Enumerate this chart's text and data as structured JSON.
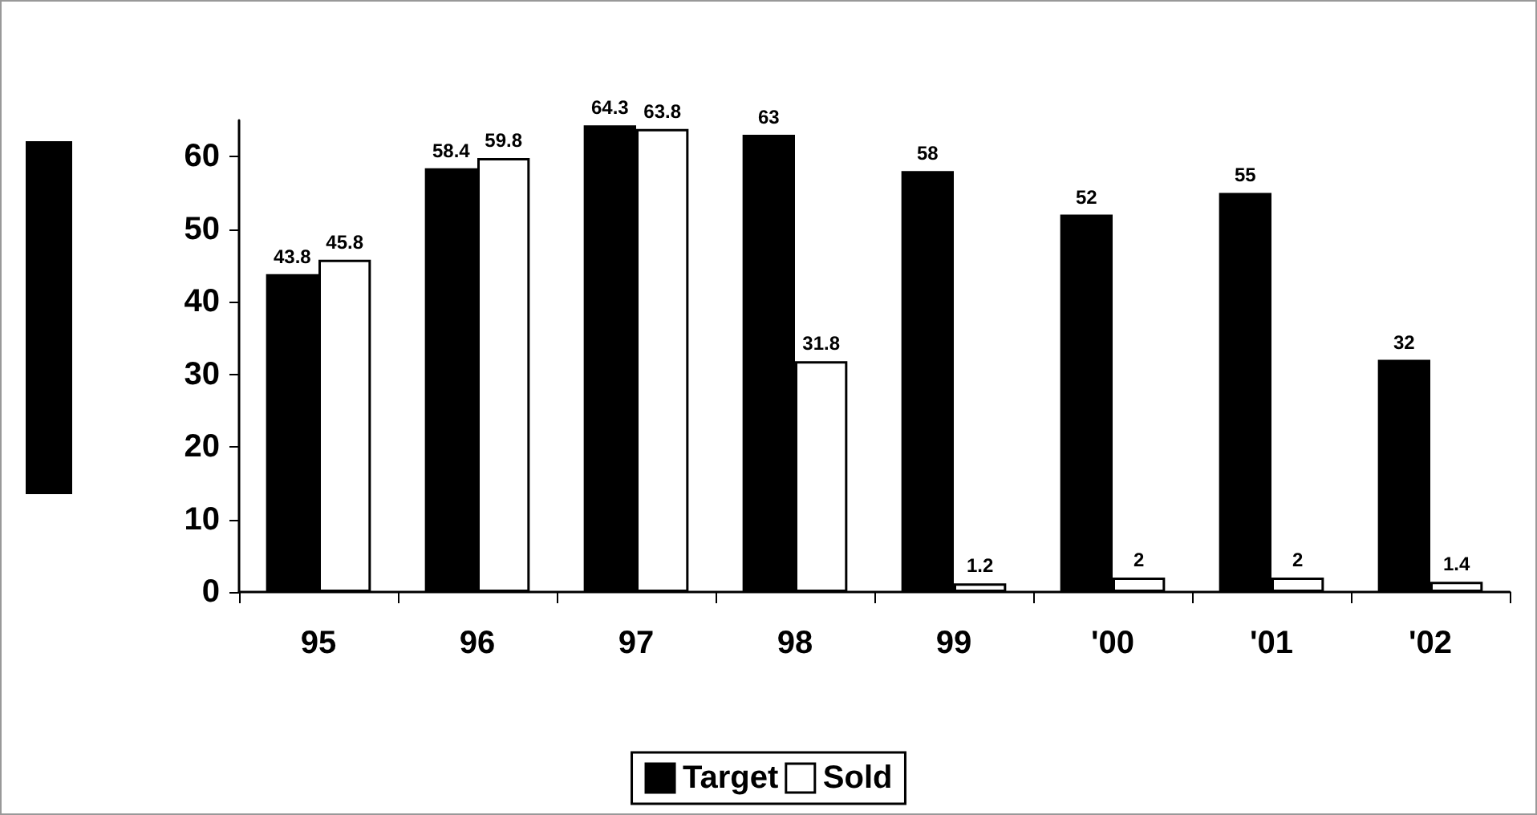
{
  "chart_data": {
    "type": "bar",
    "categories": [
      "95",
      "96",
      "97",
      "98",
      "99",
      "'00",
      "'01",
      "'02"
    ],
    "series": [
      {
        "name": "Target",
        "color": "#000000",
        "values": [
          43.8,
          58.4,
          64.3,
          63,
          58,
          52,
          55,
          32
        ]
      },
      {
        "name": "Sold",
        "color": "#ffffff",
        "values": [
          45.8,
          59.8,
          63.8,
          31.8,
          1.2,
          2,
          2,
          1.4
        ]
      }
    ],
    "ylim": [
      0,
      65
    ],
    "yticks": [
      0,
      10,
      20,
      30,
      40,
      50,
      60
    ],
    "data_labels": true,
    "grid": false,
    "legend": "bottom"
  }
}
